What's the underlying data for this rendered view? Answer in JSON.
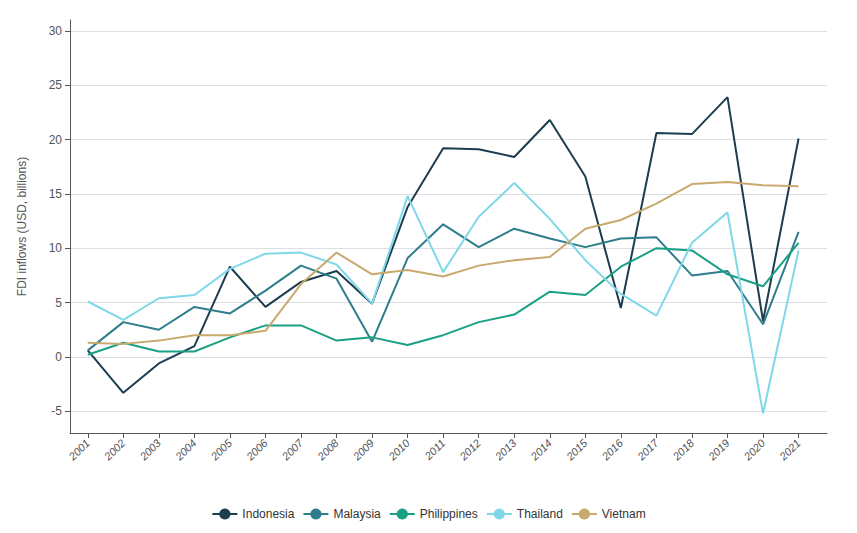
{
  "chart_data": {
    "type": "line",
    "ylabel": "FDI inflows (USD, billions)",
    "x": [
      2001,
      2002,
      2003,
      2004,
      2005,
      2006,
      2007,
      2008,
      2009,
      2010,
      2011,
      2012,
      2013,
      2014,
      2015,
      2016,
      2017,
      2018,
      2019,
      2020,
      2021
    ],
    "series": [
      {
        "name": "Indonesia",
        "color": "#1b3d4f",
        "values": [
          0.6,
          -3.3,
          -0.6,
          1.0,
          8.3,
          4.6,
          6.9,
          7.9,
          4.9,
          13.8,
          19.2,
          19.1,
          18.4,
          21.8,
          16.6,
          4.5,
          20.6,
          20.5,
          23.9,
          3.3,
          20.1
        ]
      },
      {
        "name": "Malaysia",
        "color": "#2e7d8c",
        "values": [
          0.6,
          3.2,
          2.5,
          4.6,
          4.0,
          6.1,
          8.4,
          7.2,
          1.4,
          9.1,
          12.2,
          10.1,
          11.8,
          10.9,
          10.1,
          10.9,
          11.0,
          7.5,
          7.9,
          3.0,
          11.5
        ]
      },
      {
        "name": "Philippines",
        "color": "#1aa085",
        "values": [
          0.2,
          1.3,
          0.5,
          0.5,
          1.8,
          2.9,
          2.9,
          1.5,
          1.8,
          1.1,
          2.0,
          3.2,
          3.9,
          6.0,
          5.7,
          8.3,
          10.0,
          9.8,
          7.6,
          6.5,
          10.5
        ]
      },
      {
        "name": "Thailand",
        "color": "#7fd8e8",
        "values": [
          5.1,
          3.4,
          5.4,
          5.7,
          8.1,
          9.5,
          9.6,
          8.5,
          4.9,
          14.8,
          7.8,
          12.9,
          16.0,
          12.7,
          8.9,
          5.8,
          3.8,
          10.5,
          13.3,
          -5.2,
          9.8
        ]
      },
      {
        "name": "Vietnam",
        "color": "#c8a96e",
        "values": [
          1.3,
          1.2,
          1.5,
          2.0,
          2.0,
          2.4,
          6.7,
          9.6,
          7.6,
          8.0,
          7.4,
          8.4,
          8.9,
          9.2,
          11.8,
          12.6,
          14.1,
          15.9,
          16.1,
          15.8,
          15.7
        ]
      }
    ],
    "xlim": [
      2000.5,
      2021.8
    ],
    "xticks": [
      2001,
      2002,
      2003,
      2004,
      2005,
      2006,
      2007,
      2008,
      2009,
      2010,
      2011,
      2012,
      2013,
      2014,
      2015,
      2016,
      2017,
      2018,
      2019,
      2020,
      2021
    ],
    "ylim": [
      -7,
      31
    ],
    "yticks": [
      -5,
      0,
      5,
      10,
      15,
      20,
      25,
      30
    ],
    "grid": true,
    "legend": "bottom"
  }
}
